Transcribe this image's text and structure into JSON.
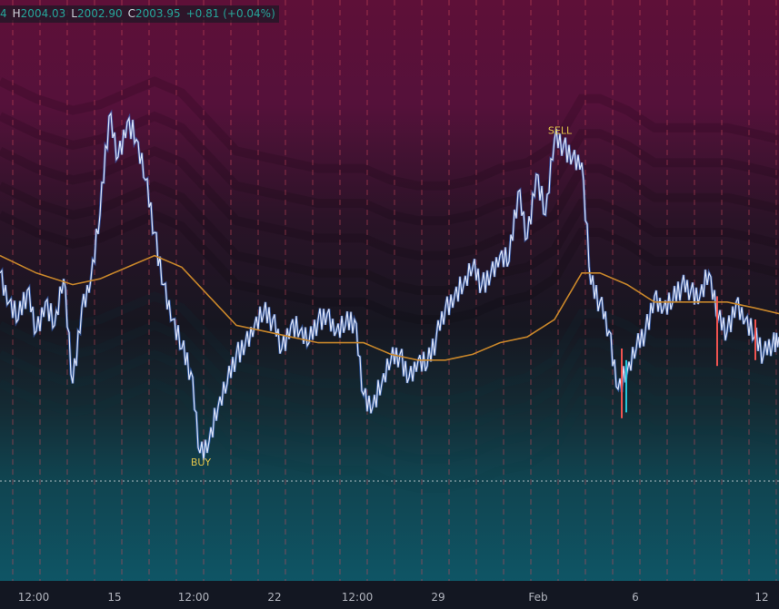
{
  "ohlc_bar": {
    "open_key": "4",
    "high_key": "H",
    "high": "2004.03",
    "low_key": "L",
    "low": "2002.90",
    "close_key": "C",
    "close": "2003.95",
    "change": "+0.81 (+0.04%)"
  },
  "colors": {
    "band_top": "#5e1038",
    "band_mid": "#161620",
    "band_bottom": "#0f5565",
    "price_line": "#dbe3f8",
    "price_shadow": "#3b6fd6",
    "moving_average": "#c8862a",
    "grid_line": "#d2495a",
    "signal": "#e0c34a",
    "up_candle": "#26c6da",
    "down_candle": "#ef5350"
  },
  "chart_data": {
    "type": "line",
    "x_ticks": [
      "12:00",
      "15",
      "12:00",
      "22",
      "12:00",
      "29",
      "Feb",
      "6",
      "12"
    ],
    "price_level_line": "dotted",
    "series": [
      {
        "x": [
          0,
          10,
          20,
          30,
          40,
          50,
          60,
          70,
          80,
          90,
          100,
          110,
          120,
          130,
          140,
          150,
          160,
          170,
          180,
          190,
          200,
          210,
          220,
          230,
          240,
          250,
          260,
          270,
          280,
          290,
          300,
          310,
          320,
          330,
          340,
          350,
          360,
          370,
          380,
          390,
          400,
          410,
          420,
          430,
          440,
          450,
          460,
          470,
          480,
          490,
          500,
          510,
          520,
          530,
          540,
          550,
          560,
          570,
          580,
          590,
          600,
          610,
          620,
          630,
          640,
          650,
          660,
          670,
          680,
          690,
          700,
          710,
          720,
          730,
          740,
          750,
          760,
          770,
          780,
          790,
          800,
          810,
          820,
          830,
          840,
          850,
          857
        ],
        "values": [
          0.47,
          0.52,
          0.55,
          0.5,
          0.57,
          0.52,
          0.56,
          0.48,
          0.66,
          0.53,
          0.48,
          0.37,
          0.2,
          0.27,
          0.21,
          0.24,
          0.31,
          0.4,
          0.49,
          0.55,
          0.6,
          0.64,
          0.78,
          0.76,
          0.7,
          0.66,
          0.61,
          0.59,
          0.56,
          0.54,
          0.55,
          0.6,
          0.56,
          0.57,
          0.59,
          0.55,
          0.54,
          0.57,
          0.56,
          0.55,
          0.68,
          0.7,
          0.66,
          0.62,
          0.61,
          0.65,
          0.62,
          0.63,
          0.58,
          0.53,
          0.51,
          0.49,
          0.46,
          0.49,
          0.47,
          0.44,
          0.45,
          0.33,
          0.41,
          0.3,
          0.37,
          0.24,
          0.25,
          0.27,
          0.28,
          0.49,
          0.52,
          0.57,
          0.67,
          0.64,
          0.6,
          0.57,
          0.51,
          0.53,
          0.52,
          0.49,
          0.5,
          0.51,
          0.47,
          0.55,
          0.57,
          0.52,
          0.55,
          0.58,
          0.61,
          0.59,
          0.58
        ]
      },
      {
        "x": [
          0,
          40,
          80,
          110,
          140,
          170,
          200,
          230,
          260,
          290,
          320,
          350,
          380,
          400,
          430,
          460,
          490,
          520,
          550,
          580,
          610,
          640,
          660,
          690,
          720,
          760,
          800,
          830,
          857
        ],
        "values": [
          0.44,
          0.47,
          0.49,
          0.48,
          0.46,
          0.44,
          0.46,
          0.51,
          0.56,
          0.57,
          0.58,
          0.59,
          0.59,
          0.59,
          0.61,
          0.62,
          0.62,
          0.61,
          0.59,
          0.58,
          0.55,
          0.47,
          0.47,
          0.49,
          0.52,
          0.52,
          0.52,
          0.53,
          0.54
        ]
      }
    ],
    "annotations": [
      {
        "label": "SELL",
        "x": 616,
        "y": 0.24
      },
      {
        "label": "BUY",
        "x": 221,
        "y": 0.78
      }
    ]
  }
}
